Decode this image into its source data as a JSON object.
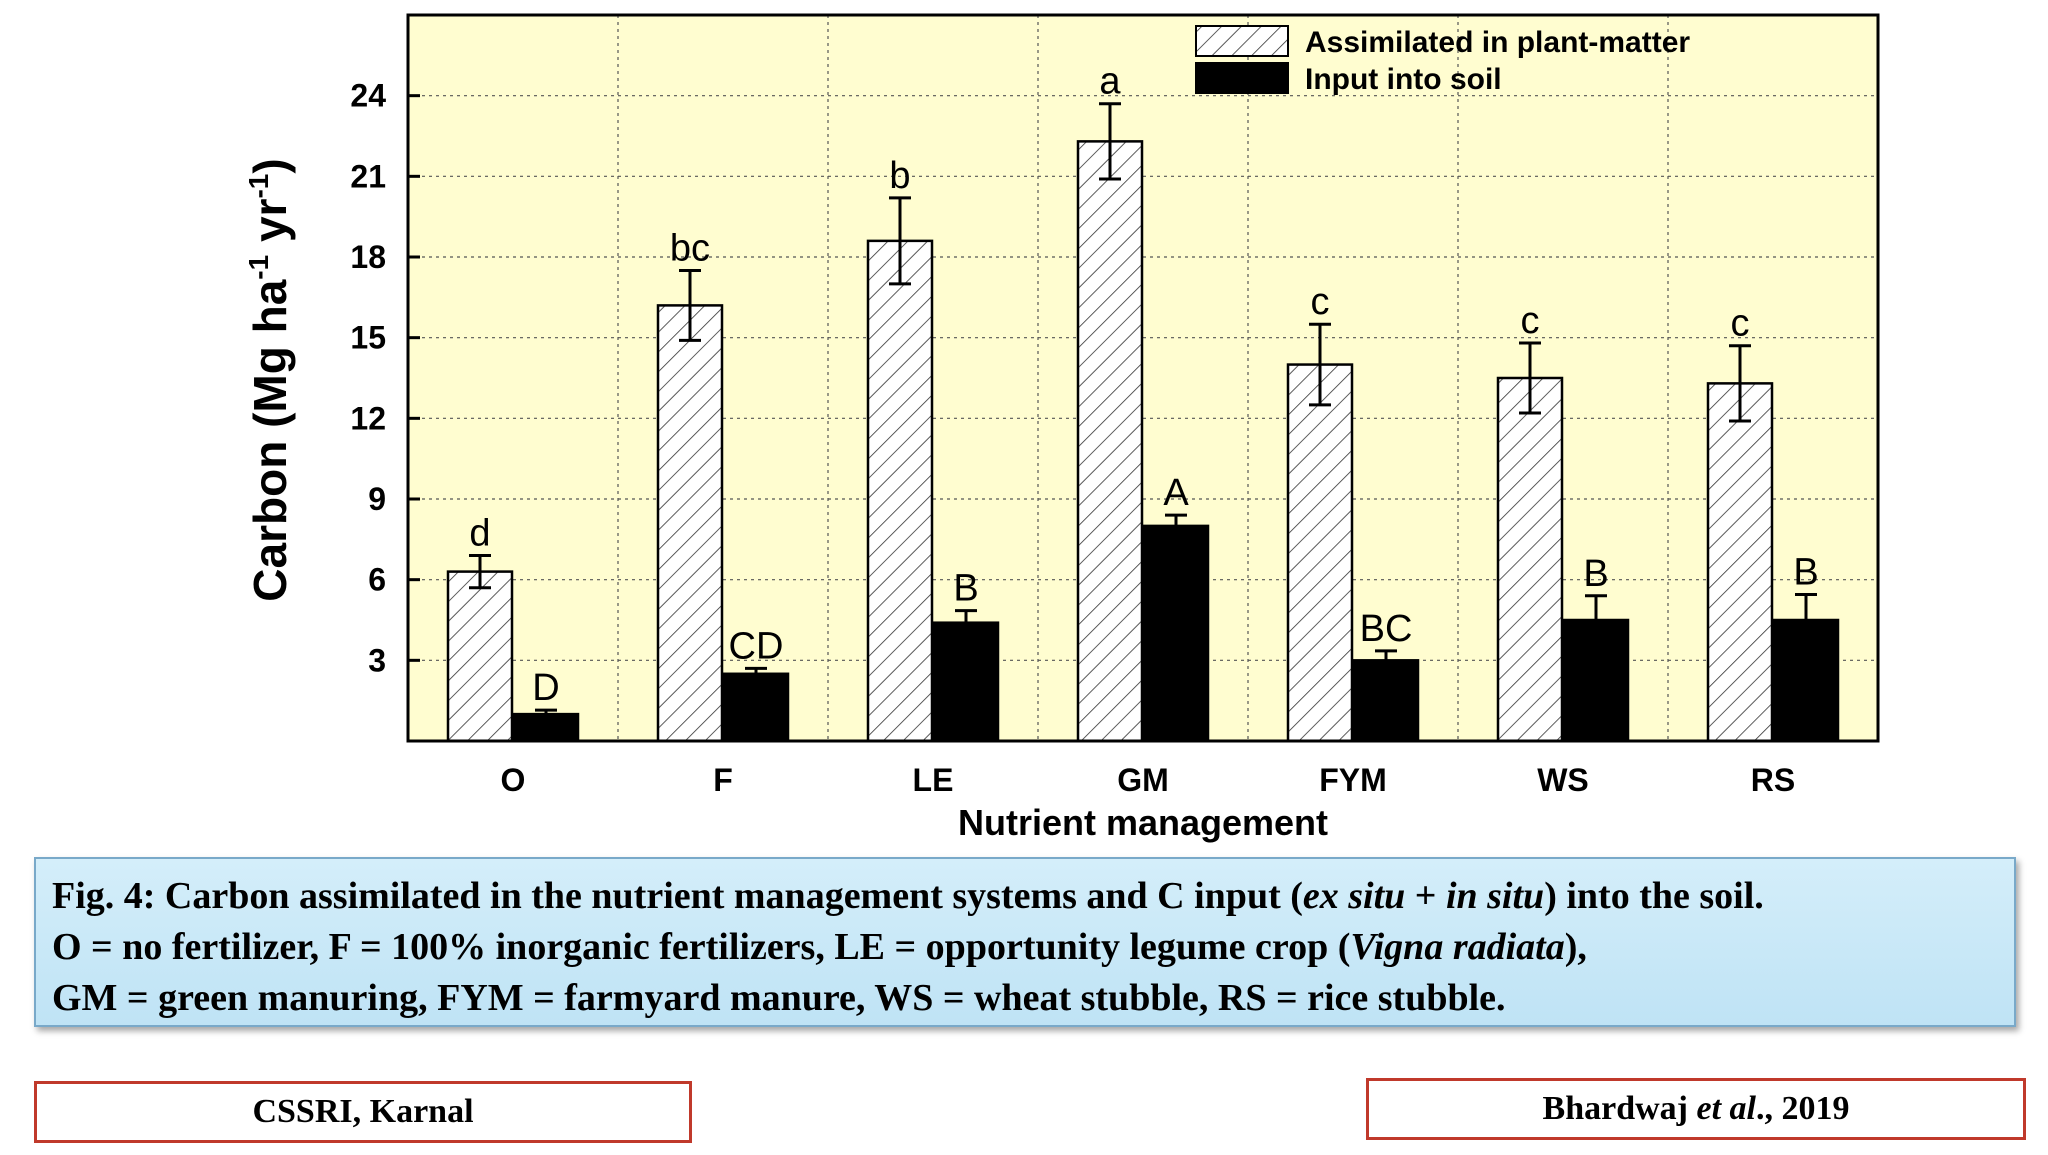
{
  "chart_data": {
    "type": "bar",
    "title": "",
    "xlabel": "Nutrient management",
    "ylabel": "Carbon (Mg ha-1 yr-1)",
    "ylabel_parts": [
      "Carbon (Mg ha",
      "-1",
      " yr",
      "-1",
      ")"
    ],
    "ylim": [
      0,
      27
    ],
    "yticks": [
      3,
      6,
      9,
      12,
      15,
      18,
      21,
      24
    ],
    "grid": true,
    "legend_position": "top-right",
    "categories": [
      "O",
      "F",
      "LE",
      "GM",
      "FYM",
      "WS",
      "RS"
    ],
    "series": [
      {
        "name": "Assimilated in plant-matter",
        "pattern": "hatched",
        "values": [
          6.3,
          16.2,
          18.6,
          22.3,
          14.0,
          13.5,
          13.3
        ],
        "errors": [
          0.6,
          1.3,
          1.6,
          1.4,
          1.5,
          1.3,
          1.4
        ],
        "letters": [
          "d",
          "bc",
          "b",
          "a",
          "c",
          "c",
          "c"
        ]
      },
      {
        "name": "Input into soil",
        "pattern": "solid",
        "values": [
          1.0,
          2.5,
          4.4,
          8.0,
          3.0,
          4.5,
          4.5
        ],
        "errors": [
          0.15,
          0.2,
          0.45,
          0.4,
          0.35,
          0.9,
          0.95
        ],
        "letters": [
          "D",
          "CD",
          "B",
          "A",
          "BC",
          "B",
          "B"
        ]
      }
    ],
    "colors": {
      "plot_background": "#fffdd0",
      "bar_solid": "#000000",
      "hatch_fill": "#ffffff"
    }
  },
  "caption": {
    "line1": [
      {
        "text": "Fig. 4: Carbon assimilated in the nutrient management systems and C input (",
        "italic": false
      },
      {
        "text": "ex situ",
        "italic": true
      },
      {
        "text": " + ",
        "italic": false
      },
      {
        "text": "in situ",
        "italic": true
      },
      {
        "text": ") into the soil.",
        "italic": false
      }
    ],
    "line2": [
      {
        "text": "O = no fertilizer, F = 100% inorganic fertilizers, LE = opportunity legume crop (",
        "italic": false
      },
      {
        "text": "Vigna radiata",
        "italic": true
      },
      {
        "text": "),",
        "italic": false
      }
    ],
    "line3": [
      {
        "text": "GM = green manuring, FYM = farmyard manure, WS = wheat stubble, RS = rice stubble.",
        "italic": false
      }
    ]
  },
  "footer": {
    "left": "CSSRI, Karnal",
    "right_parts": [
      {
        "text": "Bhardwaj ",
        "italic": false
      },
      {
        "text": "et al",
        "italic": true
      },
      {
        "text": "., 2019",
        "italic": false
      }
    ]
  }
}
